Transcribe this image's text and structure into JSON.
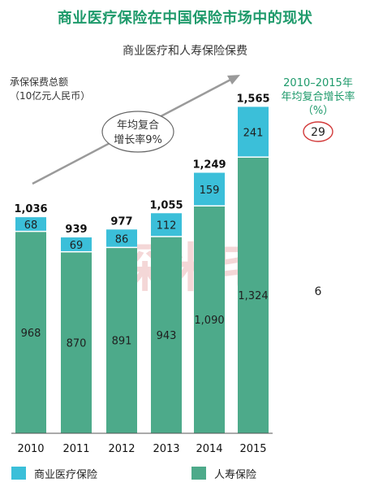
{
  "title": "商业医疗保险在中国保险市场中的现状",
  "chart_data": {
    "type": "bar",
    "stacked": true,
    "subtitle": "商业医疗和人寿保险保费",
    "ylabel_line1": "承保保费总额",
    "ylabel_line2": "（10亿元人民币）",
    "categories": [
      "2010",
      "2011",
      "2012",
      "2013",
      "2014",
      "2015"
    ],
    "series": [
      {
        "name": "人寿保险",
        "values": [
          968,
          870,
          891,
          943,
          1090,
          1324
        ],
        "labels": [
          "968",
          "870",
          "891",
          "943",
          "1,090",
          "1,324"
        ],
        "color": "#4daa8a"
      },
      {
        "name": "商业医疗保险",
        "values": [
          68,
          69,
          86,
          112,
          159,
          241
        ],
        "labels": [
          "68",
          "69",
          "86",
          "112",
          "159",
          "241"
        ],
        "color": "#3bbfd9"
      }
    ],
    "totals": [
      1036,
      939,
      977,
      1055,
      1249,
      1565
    ],
    "total_labels": [
      "1,036",
      "939",
      "977",
      "1,055",
      "1,249",
      "1,565"
    ],
    "cagr_header_line1": "2010–2015年",
    "cagr_header_line2": "年均复合增长率",
    "cagr_header_line3": "（%）",
    "cagr_values": [
      "29",
      "6"
    ],
    "annotation_line1": "年均复合",
    "annotation_line2": "增长率9%",
    "watermark": "深米宅",
    "legend_position": "bottom"
  }
}
